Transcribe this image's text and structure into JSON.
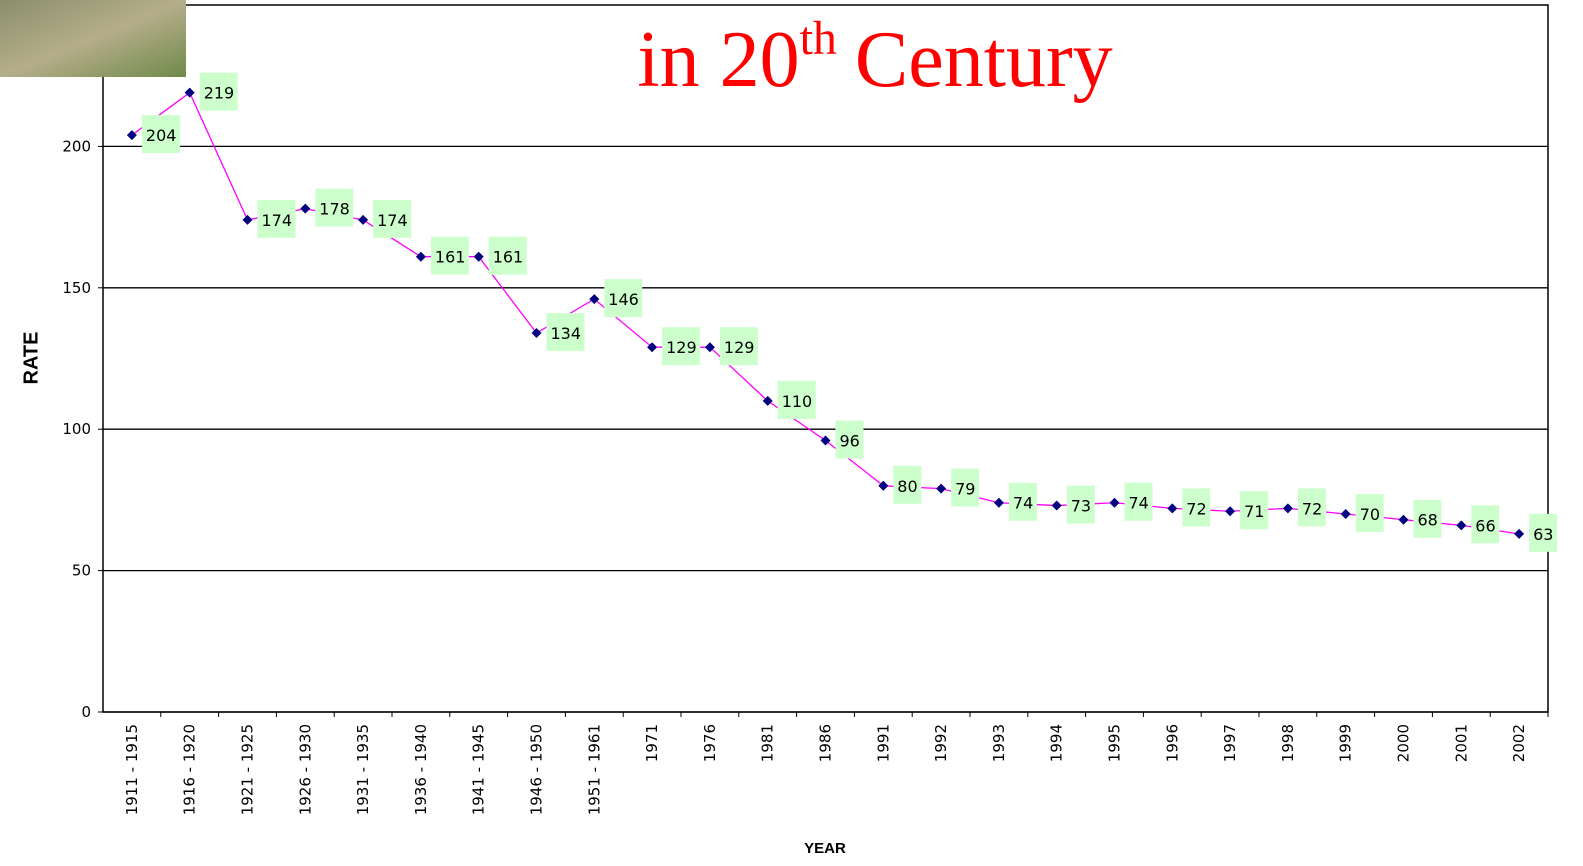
{
  "chart_data": {
    "type": "line",
    "title": {
      "main": "in 20",
      "sup": "th",
      "rest": "Century"
    },
    "x_label": "YEAR",
    "y_label": "RATE",
    "categories": [
      "1911 - 1915",
      "1916 - 1920",
      "1921 - 1925",
      "1926 - 1930",
      "1931 - 1935",
      "1936 - 1940",
      "1941 - 1945",
      "1946 - 1950",
      "1951 - 1961",
      "1971",
      "1976",
      "1981",
      "1986",
      "1991",
      "1992",
      "1993",
      "1994",
      "1995",
      "1996",
      "1997",
      "1998",
      "1999",
      "2000",
      "2001",
      "2002"
    ],
    "series": [
      {
        "name": "RATE",
        "color": "#ff00ff",
        "marker_color": "#000080",
        "values": [
          204,
          219,
          174,
          178,
          174,
          161,
          161,
          134,
          146,
          129,
          129,
          110,
          96,
          80,
          79,
          74,
          73,
          74,
          72,
          71,
          72,
          70,
          68,
          66,
          63
        ]
      }
    ],
    "ylim": [
      0,
      250
    ],
    "yticks": [
      0,
      50,
      100,
      150,
      200
    ],
    "grid": true,
    "label_background": "#ccffcc",
    "title_color": "#ff0000"
  }
}
